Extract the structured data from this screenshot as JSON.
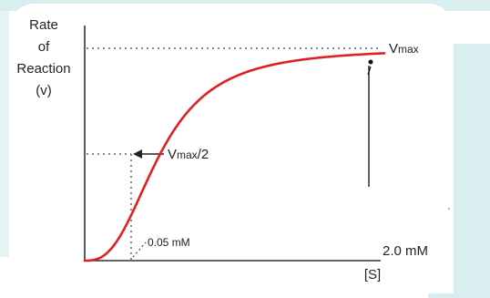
{
  "chart_data": {
    "type": "line",
    "title": "",
    "ylabel_lines": [
      "Rate",
      "of",
      "Reaction",
      "(v)"
    ],
    "xlabel": "[S]",
    "series": [
      {
        "color": "#e02020",
        "x": [
          0,
          0.01,
          0.025,
          0.05,
          0.1,
          0.2,
          0.3,
          0.5,
          0.8,
          1.2,
          1.6,
          2.0,
          2.1
        ],
        "y": [
          0,
          0.167,
          0.333,
          0.5,
          0.667,
          0.8,
          0.857,
          0.909,
          0.941,
          0.96,
          0.97,
          0.976,
          0.977
        ]
      }
    ],
    "annotations": {
      "vmax_label_main": "V",
      "vmax_label_sub": "max",
      "half_label_main": "V",
      "half_label_sub": "max",
      "half_label_suffix": "/2",
      "km_label": "0.05 mM",
      "end_label": "2.0 mM"
    },
    "reference_values": {
      "vmax": 1.0,
      "half_vmax": 0.5,
      "km": 0.05,
      "s_end": 2.0
    },
    "grid": false,
    "legend": "none"
  }
}
